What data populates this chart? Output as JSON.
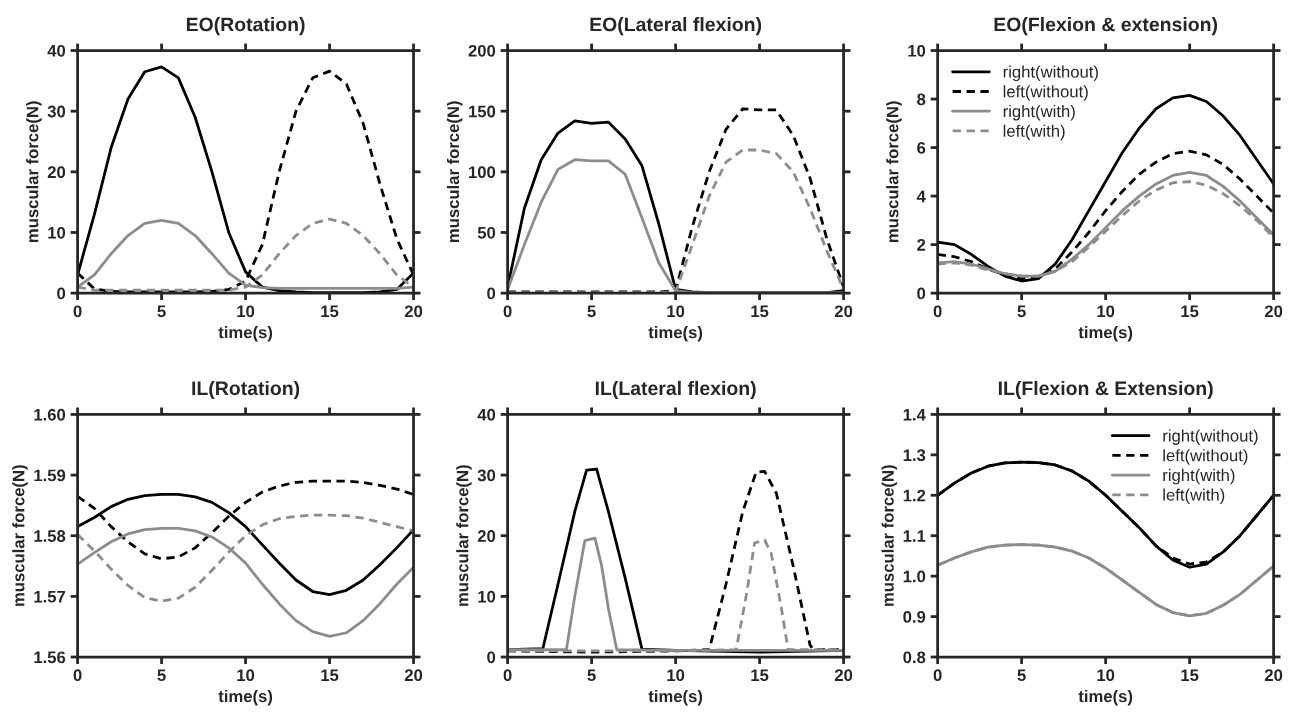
{
  "chart_data": [
    {
      "type": "line",
      "title": "EO(Rotation)",
      "xlabel": "time(s)",
      "ylabel": "muscular force(N)",
      "x": [
        0,
        1,
        2,
        3,
        4,
        5,
        6,
        7,
        8,
        9,
        10,
        11,
        12,
        13,
        14,
        15,
        16,
        17,
        18,
        19,
        20
      ],
      "xlim": [
        0,
        20
      ],
      "xticks": [
        0,
        5,
        10,
        15,
        20
      ],
      "ylim": [
        0,
        40
      ],
      "yticks": [
        0,
        10,
        20,
        30,
        40
      ],
      "grid": false,
      "legend": false,
      "series": [
        {
          "color": "#000000",
          "line_style": "solid",
          "values": [
            3,
            13,
            24,
            32,
            36.5,
            37.3,
            35.5,
            29,
            20,
            10,
            3.5,
            1,
            0.4,
            0.2,
            0.1,
            0.1,
            0.1,
            0.1,
            0.2,
            0.6,
            3.3
          ]
        },
        {
          "color": "#000000",
          "line_style": "dashed",
          "values": [
            3.3,
            0.7,
            0.3,
            0.2,
            0.2,
            0.2,
            0.2,
            0.2,
            0.3,
            0.6,
            2,
            8,
            20,
            30,
            35.5,
            36.6,
            34.5,
            28,
            18,
            9,
            3
          ]
        },
        {
          "color": "#8c8c8c",
          "line_style": "solid",
          "values": [
            1,
            3,
            6.5,
            9.5,
            11.5,
            12,
            11.5,
            9.5,
            6.5,
            3.3,
            1.3,
            0.9,
            0.8,
            0.8,
            0.8,
            0.8,
            0.8,
            0.8,
            0.8,
            0.8,
            1
          ]
        },
        {
          "color": "#8c8c8c",
          "line_style": "dashed",
          "values": [
            1,
            0.5,
            0.5,
            0.5,
            0.5,
            0.5,
            0.5,
            0.5,
            0.5,
            0.5,
            1,
            3,
            6.5,
            9.5,
            11.5,
            12.2,
            11.5,
            9.5,
            6.5,
            3,
            1
          ]
        }
      ]
    },
    {
      "type": "line",
      "title": "EO(Lateral flexion)",
      "xlabel": "time(s)",
      "ylabel": "muscular force(N)",
      "x": [
        0,
        1,
        2,
        3,
        4,
        5,
        6,
        7,
        8,
        9,
        10,
        11,
        12,
        13,
        14,
        15,
        16,
        17,
        18,
        19,
        20
      ],
      "xlim": [
        0,
        20
      ],
      "xticks": [
        0,
        5,
        10,
        15,
        20
      ],
      "ylim": [
        0,
        200
      ],
      "yticks": [
        0,
        50,
        100,
        150,
        200
      ],
      "grid": false,
      "legend": false,
      "series": [
        {
          "color": "#000000",
          "line_style": "solid",
          "values": [
            5,
            70,
            110,
            132,
            142,
            140,
            141,
            127,
            105,
            57,
            3,
            1,
            0.5,
            0.5,
            0.5,
            0.5,
            0.5,
            0.5,
            0.5,
            0.5,
            2
          ]
        },
        {
          "color": "#000000",
          "line_style": "dashed",
          "values": [
            1,
            1,
            1,
            1,
            1,
            1,
            1,
            1,
            1,
            1,
            2,
            55,
            100,
            135,
            152,
            151,
            151,
            130,
            95,
            45,
            5
          ]
        },
        {
          "color": "#8c8c8c",
          "line_style": "solid",
          "values": [
            3,
            40,
            75,
            102,
            110,
            109,
            109,
            98,
            62,
            25,
            2,
            0.5,
            0.5,
            0.5,
            0.5,
            0.5,
            0.5,
            0.5,
            0.5,
            0.5,
            0.5
          ]
        },
        {
          "color": "#8c8c8c",
          "line_style": "dashed",
          "values": [
            0.5,
            0.5,
            0.5,
            0.5,
            0.5,
            0.5,
            0.5,
            0.5,
            0.5,
            0.5,
            1,
            40,
            80,
            108,
            118,
            118,
            115,
            100,
            70,
            35,
            3
          ]
        }
      ]
    },
    {
      "type": "line",
      "title": "EO(Flexion & extension)",
      "xlabel": "time(s)",
      "ylabel": "muscular force(N)",
      "x": [
        0,
        1,
        2,
        3,
        4,
        5,
        6,
        7,
        8,
        9,
        10,
        11,
        12,
        13,
        14,
        15,
        16,
        17,
        18,
        19,
        20
      ],
      "xlim": [
        0,
        20
      ],
      "xticks": [
        0,
        5,
        10,
        15,
        20
      ],
      "ylim": [
        0,
        10
      ],
      "yticks": [
        0,
        2,
        4,
        6,
        8,
        10
      ],
      "grid": false,
      "legend": "top left",
      "series": [
        {
          "name": "right(without)",
          "color": "#000000",
          "line_style": "solid",
          "values": [
            2.1,
            2.0,
            1.6,
            1.1,
            0.7,
            0.5,
            0.6,
            1.2,
            2.2,
            3.4,
            4.6,
            5.8,
            6.8,
            7.6,
            8.05,
            8.15,
            7.9,
            7.3,
            6.5,
            5.5,
            4.5
          ]
        },
        {
          "name": "left(without)",
          "color": "#000000",
          "line_style": "dashed",
          "values": [
            1.6,
            1.5,
            1.3,
            1.0,
            0.75,
            0.6,
            0.65,
            1.0,
            1.7,
            2.5,
            3.4,
            4.2,
            4.9,
            5.4,
            5.75,
            5.85,
            5.7,
            5.3,
            4.7,
            4.0,
            3.3
          ]
        },
        {
          "name": "right(with)",
          "color": "#8c8c8c",
          "line_style": "solid",
          "values": [
            1.25,
            1.3,
            1.2,
            1.0,
            0.8,
            0.7,
            0.7,
            0.9,
            1.4,
            2.0,
            2.7,
            3.4,
            4.0,
            4.5,
            4.85,
            4.98,
            4.85,
            4.4,
            3.8,
            3.1,
            2.4
          ]
        },
        {
          "name": "left(with)",
          "color": "#8c8c8c",
          "line_style": "dashed",
          "values": [
            1.2,
            1.25,
            1.15,
            0.95,
            0.8,
            0.7,
            0.7,
            0.9,
            1.3,
            1.9,
            2.55,
            3.2,
            3.8,
            4.25,
            4.55,
            4.6,
            4.45,
            4.1,
            3.6,
            3.0,
            2.3
          ]
        }
      ]
    },
    {
      "type": "line",
      "title": "IL(Rotation)",
      "xlabel": "time(s)",
      "ylabel": "muscular force(N)",
      "x": [
        0,
        1,
        2,
        3,
        4,
        5,
        6,
        7,
        8,
        9,
        10,
        11,
        12,
        13,
        14,
        15,
        16,
        17,
        18,
        19,
        20
      ],
      "xlim": [
        0,
        20
      ],
      "xticks": [
        0,
        5,
        10,
        15,
        20
      ],
      "ylim": [
        1.56,
        1.6
      ],
      "yticks": [
        1.56,
        1.57,
        1.58,
        1.59,
        {
          "value": 1.6,
          "label": "1.60"
        }
      ],
      "grid": false,
      "legend": false,
      "series": [
        {
          "color": "#000000",
          "line_style": "solid",
          "values": [
            1.5815,
            1.583,
            1.5848,
            1.586,
            1.5866,
            1.5868,
            1.5868,
            1.5864,
            1.5855,
            1.5838,
            1.5815,
            1.5785,
            1.5755,
            1.5727,
            1.5708,
            1.5703,
            1.571,
            1.5727,
            1.5752,
            1.578,
            1.581
          ]
        },
        {
          "color": "#000000",
          "line_style": "dashed",
          "values": [
            1.5865,
            1.5845,
            1.5815,
            1.579,
            1.577,
            1.5762,
            1.5765,
            1.578,
            1.5805,
            1.5832,
            1.5855,
            1.5872,
            1.5882,
            1.5888,
            1.589,
            1.589,
            1.589,
            1.5888,
            1.5883,
            1.5877,
            1.5868
          ]
        },
        {
          "color": "#8c8c8c",
          "line_style": "solid",
          "values": [
            1.5753,
            1.5772,
            1.579,
            1.5803,
            1.581,
            1.5812,
            1.5812,
            1.5808,
            1.5798,
            1.578,
            1.5755,
            1.572,
            1.5688,
            1.566,
            1.5642,
            1.5634,
            1.564,
            1.566,
            1.5688,
            1.572,
            1.5748
          ]
        },
        {
          "color": "#8c8c8c",
          "line_style": "dashed",
          "values": [
            1.5802,
            1.5775,
            1.5745,
            1.5718,
            1.5698,
            1.5692,
            1.5697,
            1.5715,
            1.5743,
            1.5773,
            1.58,
            1.5818,
            1.5828,
            1.5832,
            1.5834,
            1.5834,
            1.5833,
            1.5829,
            1.5822,
            1.5815,
            1.5808
          ]
        }
      ]
    },
    {
      "type": "line",
      "title": "IL(Lateral flexion)",
      "xlabel": "time(s)",
      "ylabel": "muscular force(N)",
      "xlim": [
        0,
        20
      ],
      "xticks": [
        0,
        5,
        10,
        15,
        20
      ],
      "ylim": [
        0,
        40
      ],
      "yticks": [
        0,
        10,
        20,
        30,
        40
      ],
      "grid": false,
      "legend": false,
      "series": [
        {
          "color": "#000000",
          "line_style": "solid",
          "x": [
            0,
            2.1,
            3,
            4,
            4.7,
            5.3,
            6,
            7,
            8,
            10,
            15,
            20
          ],
          "values": [
            1.2,
            1.4,
            12,
            24,
            30.8,
            31,
            24,
            13,
            1.3,
            1.1,
            0.8,
            1.1
          ]
        },
        {
          "color": "#000000",
          "line_style": "dashed",
          "x": [
            0,
            5,
            10,
            12,
            13,
            14,
            14.8,
            15.3,
            16,
            17,
            18,
            18.2,
            20
          ],
          "values": [
            1,
            0.8,
            1,
            1.2,
            12,
            24,
            30.5,
            30.6,
            27,
            15,
            2,
            1.2,
            1.2
          ]
        },
        {
          "color": "#8c8c8c",
          "line_style": "solid",
          "x": [
            0,
            3.5,
            4,
            4.6,
            5.2,
            5.6,
            6,
            6.5,
            10,
            20
          ],
          "values": [
            1.2,
            1.2,
            10,
            19.2,
            19.6,
            15,
            8,
            1.2,
            1.1,
            1.1
          ]
        },
        {
          "color": "#8c8c8c",
          "line_style": "dashed",
          "x": [
            0,
            10,
            13.6,
            14.2,
            14.7,
            15.3,
            15.7,
            16.3,
            16.7,
            20
          ],
          "values": [
            1,
            1,
            1.2,
            10,
            18.8,
            19.3,
            17,
            8,
            1.2,
            1.2
          ]
        }
      ]
    },
    {
      "type": "line",
      "title": "IL(Flexion & Extension)",
      "xlabel": "time(s)",
      "ylabel": "muscular force(N)",
      "x": [
        0,
        1,
        2,
        3,
        4,
        5,
        6,
        7,
        8,
        9,
        10,
        11,
        12,
        13,
        14,
        15,
        16,
        17,
        18,
        19,
        20
      ],
      "xlim": [
        0,
        20
      ],
      "xticks": [
        0,
        5,
        10,
        15,
        20
      ],
      "ylim": [
        0.8,
        1.4
      ],
      "yticks": [
        0.8,
        0.9,
        {
          "value": 1.0,
          "label": "1.0"
        },
        1.1,
        1.2,
        1.3,
        1.4
      ],
      "grid": false,
      "legend": "top right",
      "series": [
        {
          "name": "right(without)",
          "color": "#000000",
          "line_style": "solid",
          "values": [
            1.2,
            1.23,
            1.255,
            1.272,
            1.28,
            1.282,
            1.281,
            1.275,
            1.26,
            1.235,
            1.2,
            1.16,
            1.12,
            1.075,
            1.04,
            1.022,
            1.03,
            1.06,
            1.1,
            1.15,
            1.2
          ]
        },
        {
          "name": "left(without)",
          "color": "#000000",
          "line_style": "dashed",
          "values": [
            1.2,
            1.23,
            1.255,
            1.272,
            1.28,
            1.282,
            1.281,
            1.275,
            1.26,
            1.235,
            1.2,
            1.16,
            1.12,
            1.075,
            1.045,
            1.03,
            1.035,
            1.06,
            1.1,
            1.15,
            1.2
          ]
        },
        {
          "name": "right(with)",
          "color": "#8c8c8c",
          "line_style": "solid",
          "values": [
            1.027,
            1.045,
            1.06,
            1.072,
            1.077,
            1.078,
            1.077,
            1.072,
            1.062,
            1.045,
            1.02,
            0.99,
            0.96,
            0.93,
            0.91,
            0.902,
            0.908,
            0.928,
            0.955,
            0.99,
            1.025
          ]
        },
        {
          "name": "left(with)",
          "color": "#8c8c8c",
          "line_style": "dashed",
          "values": [
            1.027,
            1.045,
            1.06,
            1.072,
            1.077,
            1.078,
            1.077,
            1.072,
            1.062,
            1.045,
            1.02,
            0.99,
            0.96,
            0.93,
            0.91,
            0.902,
            0.908,
            0.928,
            0.955,
            0.99,
            1.025
          ]
        }
      ]
    }
  ]
}
